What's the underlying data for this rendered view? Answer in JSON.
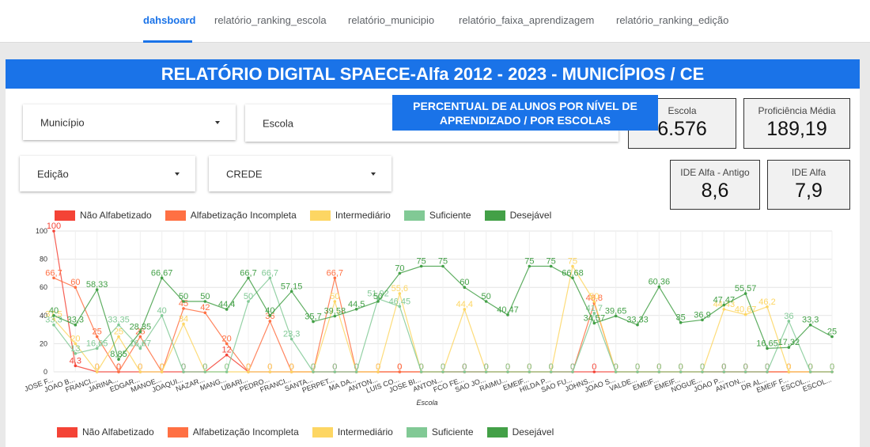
{
  "nav": {
    "tabs": [
      {
        "label": "dahsboard",
        "active": true
      },
      {
        "label": "relatório_ranking_escola",
        "active": false
      },
      {
        "label": "relatório_municipio",
        "active": false
      },
      {
        "label": "relatório_faixa_aprendizagem",
        "active": false
      },
      {
        "label": "relatório_ranking_edição",
        "active": false
      }
    ]
  },
  "header": {
    "title": "RELATÓRIO DIGITAL SPAECE-Alfa 2012 - 2023 - MUNICÍPIOS / CE"
  },
  "filters": {
    "municipio": "Município",
    "escola": "Escola",
    "edicao": "Edição",
    "crede": "CREDE"
  },
  "kpis": {
    "escola": {
      "label": "Escola",
      "value": "6.576"
    },
    "proficiencia": {
      "label": "Proficiência Média",
      "value": "189,19"
    },
    "ide_antigo": {
      "label": "IDE Alfa - Antigo",
      "value": "8,6"
    },
    "ide_alfa": {
      "label": "IDE Alfa",
      "value": "7,9"
    }
  },
  "chart_section": {
    "title": "PERCENTUAL DE ALUNOS POR NÍVEL DE APRENDIZADO / POR ESCOLAS"
  },
  "colors": {
    "accent": "#1a73e8",
    "nao_alfabetizado": "#f44336",
    "alfabetizacao_incompleta": "#ff7043",
    "intermediario": "#fdd663",
    "suficiente": "#81c995",
    "desejavel": "#43a047"
  },
  "chart_data": {
    "type": "line",
    "xlabel": "Escola",
    "ylabel": "",
    "ylim": [
      0,
      100
    ],
    "yticks": [
      0,
      20,
      40,
      60,
      80,
      100
    ],
    "grid": true,
    "legend_position": "top and bottom",
    "legend": [
      "Não Alfabetizado",
      "Alfabetização Incompleta",
      "Intermediário",
      "Suficiente",
      "Desejável"
    ],
    "x": [
      "JOSE F...",
      "JOAO B...",
      "FRANCI...",
      "JARINA...",
      "EDGAR...",
      "MANOE...",
      "JOAQUI...",
      "NAZAR...",
      "MANG...",
      "UBARI...",
      "PEDRO...",
      "FRANCI...",
      "SANTA...",
      "PERPET...",
      "MA DA...",
      "ANTON...",
      "LUIS CO...",
      "JOSE BI...",
      "ANTON...",
      "FCO FE...",
      "SAO JO...",
      "RAIMU...",
      "EMEIF...",
      "HILDA P...",
      "SAO FU...",
      "JOHNS...",
      "JOAO S...",
      "VALDE...",
      "EMEIF...",
      "EMEIF...",
      "NOGUE...",
      "JOAO P...",
      "ANTON...",
      "DR AL...",
      "EMEIF F...",
      "ESCOL...",
      "ESCOL..."
    ],
    "series": [
      {
        "name": "Não Alfabetizado",
        "values": [
          100,
          4.3,
          0,
          0,
          0,
          0,
          0,
          0,
          12,
          0,
          0,
          0,
          0,
          0,
          0,
          0,
          0,
          0,
          0,
          0,
          0,
          0,
          0,
          0,
          0,
          0,
          0,
          0,
          0,
          0,
          0,
          0,
          0,
          0,
          0,
          0,
          0
        ]
      },
      {
        "name": "Alfabetização Incompleta",
        "values": [
          66.7,
          60,
          25,
          0,
          25,
          0,
          45,
          42,
          20,
          0,
          36,
          0,
          0,
          66.7,
          0,
          0,
          0,
          0,
          0,
          0,
          0,
          0,
          0,
          0,
          0,
          48.8,
          0,
          0,
          0,
          0,
          0,
          0,
          0,
          0,
          0,
          0,
          0
        ]
      },
      {
        "name": "Intermediário",
        "values": [
          37.5,
          20,
          0,
          25,
          0,
          0,
          34,
          0,
          0,
          0,
          0,
          0,
          0,
          50,
          0,
          0,
          55.6,
          0,
          0,
          44.4,
          0,
          0,
          0,
          0,
          75,
          50,
          0,
          0,
          0,
          0,
          0,
          44.43,
          40.67,
          46.2,
          0,
          0,
          0
        ]
      },
      {
        "name": "Suficiente",
        "values": [
          33.3,
          13,
          16.65,
          33.35,
          16.67,
          40,
          0,
          0,
          0,
          50,
          66.7,
          23.3,
          0,
          0,
          0,
          51.92,
          46.45,
          0,
          0,
          0,
          0,
          0,
          0,
          0,
          0,
          41.7,
          0,
          0,
          0,
          0,
          0,
          0,
          0,
          0,
          36,
          0,
          0
        ]
      },
      {
        "name": "Desejável",
        "values": [
          40,
          33.3,
          58.33,
          8.85,
          28.35,
          66.67,
          50,
          50,
          44.4,
          66.7,
          40,
          57.15,
          35.7,
          39.58,
          44.5,
          50,
          70,
          75,
          75,
          60,
          50,
          40.47,
          75,
          75,
          66.68,
          34.57,
          39.65,
          33.33,
          60.36,
          35,
          36.9,
          47.47,
          55.57,
          16.65,
          17.32,
          33.3,
          25
        ]
      }
    ]
  }
}
